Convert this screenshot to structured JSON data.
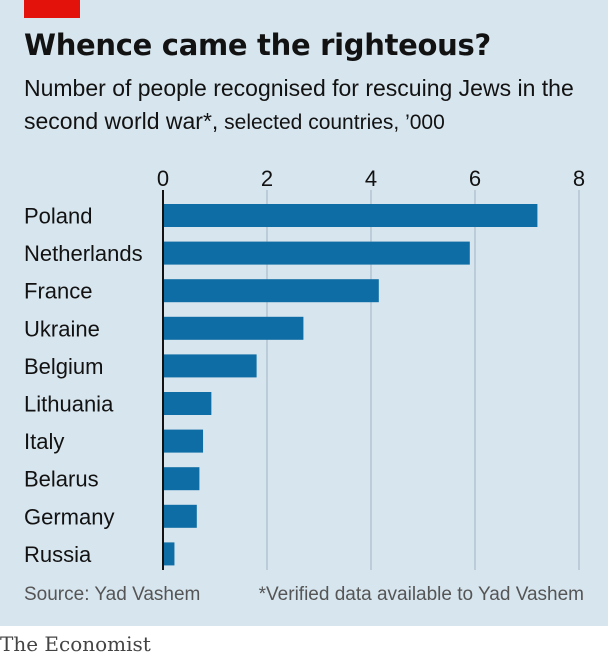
{
  "colors": {
    "background": "#d7e5ee",
    "bar": "#0e6da4",
    "accent": "#e3120b",
    "grid": "#a9bcc9",
    "axis": "#121212"
  },
  "header": {
    "title": "Whence came the righteous?",
    "subtitle_main": "Number of people recognised for rescuing Jews in the second world war*,",
    "subtitle_unit": " selected countries, ’000"
  },
  "chart_data": {
    "type": "bar",
    "orientation": "horizontal",
    "categories": [
      "Poland",
      "Netherlands",
      "France",
      "Ukraine",
      "Belgium",
      "Lithuania",
      "Italy",
      "Belarus",
      "Germany",
      "Russia"
    ],
    "values": [
      7.2,
      5.9,
      4.15,
      2.7,
      1.8,
      0.93,
      0.77,
      0.7,
      0.65,
      0.22
    ],
    "xticks": [
      "0",
      "2",
      "4",
      "6",
      "8"
    ],
    "xlim": [
      0,
      8
    ],
    "grid": true,
    "xaxis_position": "top"
  },
  "footer": {
    "source": "Source: Yad Vashem",
    "footnote": "*Verified data available to Yad Vashem",
    "brand": "The Economist"
  }
}
